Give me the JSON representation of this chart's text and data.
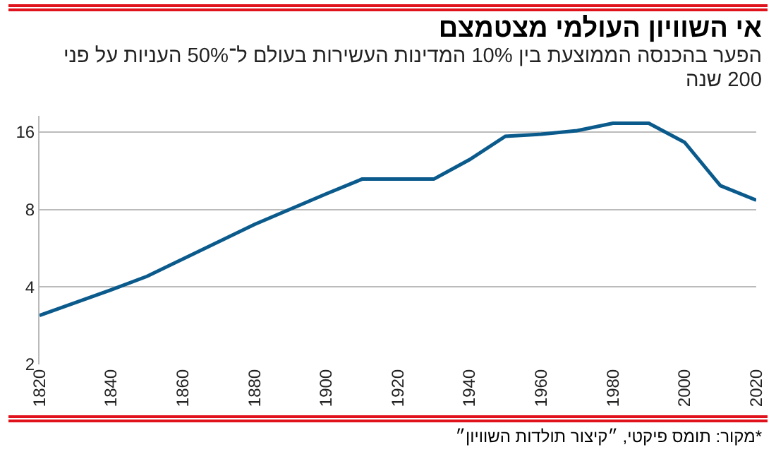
{
  "chart_data": {
    "type": "line",
    "title": "אי השוויון העולמי מצטמצם",
    "subtitle": "הפער בהכנסה הממוצעת בין 10% המדינות העשירות בעולם ל־50% העניות על פני 200 שנה",
    "annotations": [
      "*מקור: תומס פיקטי, ״קיצור תולדות השוויון״"
    ],
    "x": [
      1820,
      1840,
      1850,
      1880,
      1900,
      1910,
      1930,
      1940,
      1950,
      1960,
      1970,
      1980,
      1990,
      2000,
      2010,
      2020
    ],
    "series": [
      {
        "color": "#0a5a8c",
        "values": [
          3.1,
          3.9,
          4.4,
          7.0,
          9.2,
          10.5,
          10.5,
          12.5,
          15.4,
          15.7,
          16.2,
          17.3,
          17.3,
          14.6,
          9.9,
          8.7
        ]
      }
    ],
    "log": true,
    "xlim": [
      1820,
      2020
    ],
    "xticks": [
      1820,
      1840,
      1860,
      1880,
      1900,
      1920,
      1940,
      1960,
      1980,
      2000,
      2020
    ],
    "ylim": [
      2,
      18.5
    ],
    "yticks": [
      2,
      4,
      8,
      16
    ],
    "grid": "y",
    "marker": "none",
    "line_style": "solid"
  }
}
